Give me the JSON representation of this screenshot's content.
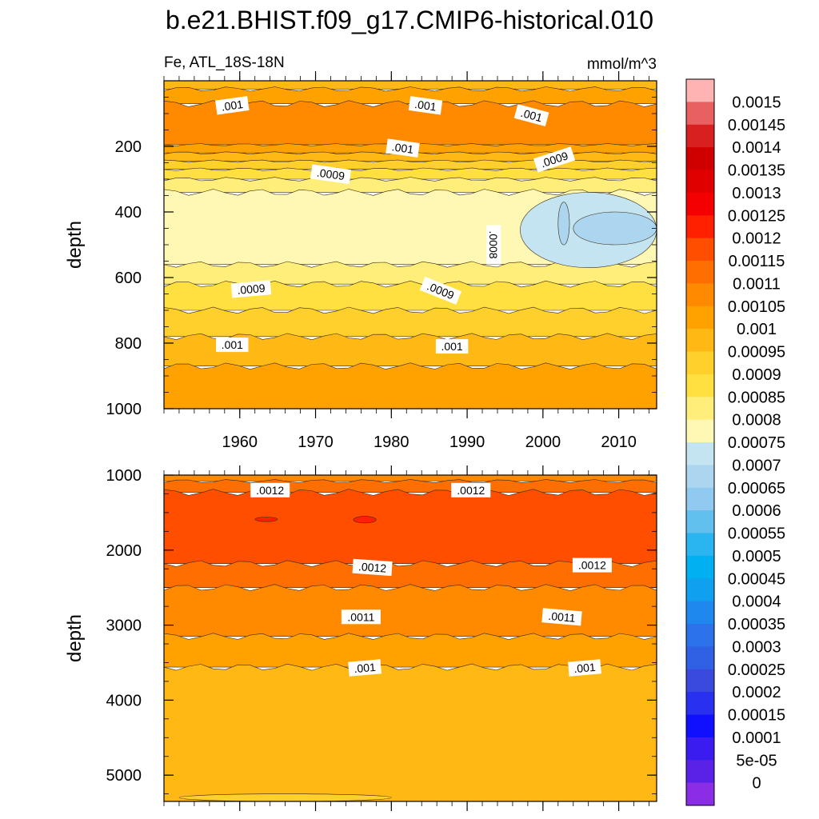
{
  "chart_data": {
    "type": "heatmap",
    "title": "b.e21.BHIST.f09_g17.CMIP6-historical.010",
    "subtitle_left": "Fe, ATL_18S-18N",
    "units": "mmol/m^3",
    "x_ticks": [
      1960,
      1970,
      1980,
      1990,
      2000,
      2010
    ],
    "xlim": [
      1950,
      2015
    ],
    "panels": [
      {
        "id": "upper",
        "ylabel": "depth",
        "ylim": [
          0,
          1000
        ],
        "y_ticks": [
          200,
          400,
          600,
          800,
          1000
        ],
        "bands": [
          {
            "from": 0,
            "to": 25,
            "value": 0.001
          },
          {
            "from": 25,
            "to": 70,
            "value": 0.00105
          },
          {
            "from": 70,
            "to": 195,
            "value": 0.0011
          },
          {
            "from": 195,
            "to": 220,
            "value": 0.00105
          },
          {
            "from": 220,
            "to": 245,
            "value": 0.001
          },
          {
            "from": 245,
            "to": 270,
            "value": 0.00095
          },
          {
            "from": 270,
            "to": 300,
            "value": 0.0009
          },
          {
            "from": 300,
            "to": 340,
            "value": 0.00085
          },
          {
            "from": 340,
            "to": 560,
            "value": 0.0008
          },
          {
            "from": 560,
            "to": 620,
            "value": 0.00085
          },
          {
            "from": 620,
            "to": 700,
            "value": 0.0009
          },
          {
            "from": 700,
            "to": 780,
            "value": 0.00095
          },
          {
            "from": 780,
            "to": 870,
            "value": 0.001
          },
          {
            "from": 870,
            "to": 1000,
            "value": 0.00105
          }
        ],
        "patches": [
          {
            "x": [
              1997,
              2015
            ],
            "y": [
              340,
              570
            ],
            "value": 0.00075
          },
          {
            "x": [
              2004,
              2015
            ],
            "y": [
              400,
              500
            ],
            "value": 0.0007
          },
          {
            "x": [
              2002,
              2003.5
            ],
            "y": [
              370,
              500
            ],
            "value": 0.0007
          }
        ],
        "contour_labels": [
          {
            "text": ".001",
            "x": 1959,
            "y": 75,
            "angle": -8
          },
          {
            "text": ".001",
            "x": 1984.5,
            "y": 75,
            "angle": 8
          },
          {
            "text": ".001",
            "x": 1998.5,
            "y": 105,
            "angle": 15
          },
          {
            "text": ".001",
            "x": 1981.5,
            "y": 205,
            "angle": 8
          },
          {
            "text": ".0009",
            "x": 1972,
            "y": 285,
            "angle": 8
          },
          {
            "text": ".0009",
            "x": 2001.5,
            "y": 240,
            "angle": -18
          },
          {
            "text": ".0008",
            "x": 1993.5,
            "y": 500,
            "angle": 90
          },
          {
            "text": ".0009",
            "x": 1961.5,
            "y": 635,
            "angle": -5
          },
          {
            "text": ".0009",
            "x": 1986.5,
            "y": 640,
            "angle": 22
          },
          {
            "text": ".001",
            "x": 1959,
            "y": 805,
            "angle": 0
          },
          {
            "text": ".001",
            "x": 1988,
            "y": 810,
            "angle": 0
          }
        ]
      },
      {
        "id": "lower",
        "ylabel": "depth",
        "ylim": [
          1000,
          5350
        ],
        "y_ticks": [
          1000,
          2000,
          3000,
          4000,
          5000
        ],
        "bands": [
          {
            "from": 1000,
            "to": 1080,
            "value": 0.0011
          },
          {
            "from": 1080,
            "to": 1230,
            "value": 0.00115
          },
          {
            "from": 1230,
            "to": 2180,
            "value": 0.0012
          },
          {
            "from": 2180,
            "to": 2500,
            "value": 0.00115
          },
          {
            "from": 2500,
            "to": 3150,
            "value": 0.0011
          },
          {
            "from": 3150,
            "to": 3560,
            "value": 0.00105
          },
          {
            "from": 3560,
            "to": 5350,
            "value": 0.001
          }
        ],
        "patches": [
          {
            "x": [
              1952,
              1980
            ],
            "y": [
              5250,
              5350
            ],
            "value": 0.00095
          },
          {
            "x": [
              1962,
              1965
            ],
            "y": [
              1560,
              1620
            ],
            "value": 0.00125
          },
          {
            "x": [
              1975,
              1978
            ],
            "y": [
              1550,
              1640
            ],
            "value": 0.00125
          }
        ],
        "contour_labels": [
          {
            "text": ".0012",
            "x": 1964,
            "y": 1200,
            "angle": 0
          },
          {
            "text": ".0012",
            "x": 1990.5,
            "y": 1200,
            "angle": 0
          },
          {
            "text": ".0012",
            "x": 1977.5,
            "y": 2230,
            "angle": 4
          },
          {
            "text": ".0012",
            "x": 2006.5,
            "y": 2200,
            "angle": 0
          },
          {
            "text": ".0011",
            "x": 1976,
            "y": 2890,
            "angle": 0
          },
          {
            "text": ".0011",
            "x": 2002.5,
            "y": 2890,
            "angle": 5
          },
          {
            "text": ".001",
            "x": 1976.5,
            "y": 3570,
            "angle": -5
          },
          {
            "text": ".001",
            "x": 2005.5,
            "y": 3570,
            "angle": -5
          }
        ]
      }
    ],
    "colorbar": {
      "levels": [
        "0.0015",
        "0.00145",
        "0.0014",
        "0.00135",
        "0.0013",
        "0.00125",
        "0.0012",
        "0.00115",
        "0.0011",
        "0.00105",
        "0.001",
        "0.00095",
        "0.0009",
        "0.00085",
        "0.0008",
        "0.00075",
        "0.0007",
        "0.00065",
        "0.0006",
        "0.00055",
        "0.0005",
        "0.00045",
        "0.0004",
        "0.00035",
        "0.0003",
        "0.00025",
        "0.0002",
        "0.00015",
        "0.0001",
        "5e-05",
        "0"
      ],
      "colors": [
        "#ffb3b3",
        "#e86060",
        "#d82020",
        "#d00000",
        "#e00000",
        "#f40000",
        "#ff2000",
        "#ff4e00",
        "#ff6e00",
        "#ff8a00",
        "#ffa200",
        "#ffb814",
        "#ffcf2c",
        "#ffe040",
        "#ffee7a",
        "#fff8b4",
        "#c4e4f2",
        "#acd6f0",
        "#90caf0",
        "#62c0ee",
        "#2ab4f0",
        "#00b0f0",
        "#10a0f0",
        "#1e88ee",
        "#2c72ea",
        "#3060e4",
        "#3a4ade",
        "#2a30f0",
        "#1010ff",
        "#3a1cf0",
        "#5a22e6",
        "#8a2ee6"
      ]
    }
  }
}
